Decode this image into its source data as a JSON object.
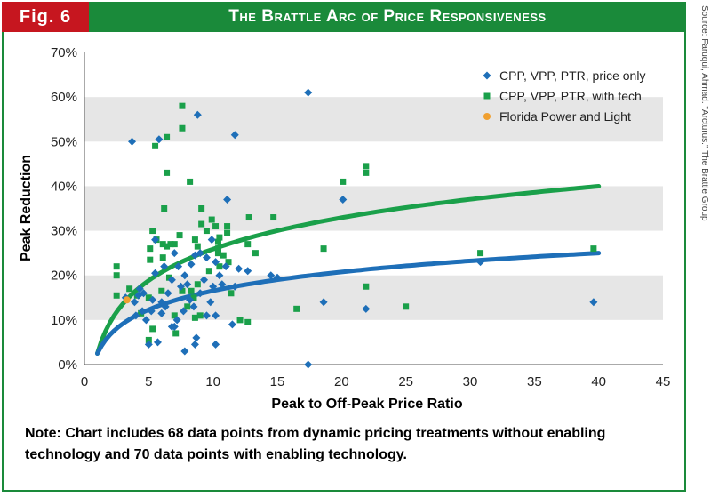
{
  "figure": {
    "label": "Fig. 6",
    "title": "The Brattle Arc of Price Responsiveness",
    "source": "Source: Faruqui, Ahmad. \"Arcturus.\" The Brattle Group",
    "note": "Note: Chart includes 68 data points from dynamic pricing treatments without enabling technology and 70 data points with enabling technology."
  },
  "colors": {
    "header_green": "#1a8a3a",
    "fig_red": "#c6161f",
    "price_only": "#1e6fb8",
    "with_tech": "#1aa04a",
    "fpl": "#f0a030",
    "band": "#e6e6e6"
  },
  "chart_data": {
    "type": "scatter",
    "xlabel": "Peak to Off-Peak Price Ratio",
    "ylabel": "Peak Reduction",
    "xlim": [
      0,
      45
    ],
    "ylim": [
      0,
      70
    ],
    "xticks": [
      "0",
      "5",
      "10",
      "15",
      "20",
      "25",
      "30",
      "35",
      "40",
      "45"
    ],
    "yticks": [
      "0%",
      "10%",
      "20%",
      "30%",
      "40%",
      "50%",
      "60%",
      "70%"
    ],
    "series": [
      {
        "name": "CPP, VPP, PTR, price only",
        "marker": "diamond",
        "points": [
          [
            3.7,
            50
          ],
          [
            5.8,
            50.5
          ],
          [
            8.8,
            56
          ],
          [
            11.7,
            51.5
          ],
          [
            17.4,
            61
          ],
          [
            11.1,
            37
          ],
          [
            20.1,
            37
          ],
          [
            5.5,
            28
          ],
          [
            6.2,
            22
          ],
          [
            7.0,
            25
          ],
          [
            7.8,
            20
          ],
          [
            8.3,
            22.5
          ],
          [
            8.6,
            24.5
          ],
          [
            9.0,
            25
          ],
          [
            9.5,
            24
          ],
          [
            10.2,
            23
          ],
          [
            11.0,
            22
          ],
          [
            9.0,
            16
          ],
          [
            8.2,
            14.5
          ],
          [
            7.7,
            12
          ],
          [
            7.2,
            10
          ],
          [
            6.8,
            8.5
          ],
          [
            6.0,
            11.5
          ],
          [
            5.2,
            12
          ],
          [
            4.5,
            12
          ],
          [
            4.0,
            11
          ],
          [
            3.9,
            14
          ],
          [
            4.2,
            15.5
          ],
          [
            4.8,
            10
          ],
          [
            5.0,
            4.5
          ],
          [
            5.7,
            5
          ],
          [
            7.0,
            8.5
          ],
          [
            7.8,
            3
          ],
          [
            8.6,
            4.5
          ],
          [
            8.7,
            6
          ],
          [
            10.2,
            4.5
          ],
          [
            10.2,
            11
          ],
          [
            10.0,
            17.5
          ],
          [
            11.7,
            17.5
          ],
          [
            12.7,
            21
          ],
          [
            14.5,
            20
          ],
          [
            15.0,
            19.5
          ],
          [
            18.6,
            14
          ],
          [
            21.9,
            12.5
          ],
          [
            30.8,
            23
          ],
          [
            39.6,
            14
          ],
          [
            17.4,
            0
          ],
          [
            9.5,
            11
          ],
          [
            11.5,
            9
          ],
          [
            6.3,
            13
          ],
          [
            6.5,
            16
          ],
          [
            7.5,
            17.5
          ],
          [
            8.0,
            18
          ],
          [
            9.3,
            19
          ],
          [
            10.5,
            20
          ],
          [
            8.5,
            13
          ],
          [
            9.8,
            14
          ],
          [
            6.0,
            14
          ],
          [
            5.3,
            14.5
          ],
          [
            4.3,
            17
          ],
          [
            3.2,
            15
          ],
          [
            5.5,
            20.5
          ],
          [
            6.8,
            19
          ],
          [
            7.3,
            22
          ],
          [
            9.9,
            28
          ],
          [
            12.0,
            21.5
          ],
          [
            10.7,
            18
          ],
          [
            4.6,
            16
          ]
        ]
      },
      {
        "name": "CPP, VPP, PTR, with tech",
        "marker": "square",
        "points": [
          [
            7.6,
            58
          ],
          [
            7.6,
            53
          ],
          [
            6.4,
            51
          ],
          [
            5.5,
            49
          ],
          [
            6.4,
            43
          ],
          [
            8.2,
            41
          ],
          [
            9.1,
            35
          ],
          [
            6.2,
            35
          ],
          [
            9.9,
            32.5
          ],
          [
            10.2,
            31
          ],
          [
            9.5,
            30
          ],
          [
            11.1,
            31
          ],
          [
            11.1,
            29.5
          ],
          [
            12.8,
            33
          ],
          [
            14.7,
            33
          ],
          [
            20.1,
            41
          ],
          [
            21.9,
            44.5
          ],
          [
            21.9,
            43
          ],
          [
            2.5,
            22
          ],
          [
            2.5,
            20
          ],
          [
            2.5,
            15.5
          ],
          [
            3.5,
            17
          ],
          [
            4.1,
            15.5
          ],
          [
            5.1,
            23.5
          ],
          [
            5.1,
            26
          ],
          [
            5.3,
            30
          ],
          [
            5.6,
            28
          ],
          [
            6.1,
            27
          ],
          [
            6.1,
            24
          ],
          [
            6.4,
            26.5
          ],
          [
            6.7,
            27
          ],
          [
            7.0,
            27
          ],
          [
            7.4,
            29
          ],
          [
            8.6,
            28
          ],
          [
            8.8,
            26.5
          ],
          [
            9.1,
            31.5
          ],
          [
            10.4,
            26
          ],
          [
            10.4,
            27.5
          ],
          [
            10.4,
            25
          ],
          [
            10.5,
            28.5
          ],
          [
            11.2,
            23
          ],
          [
            12.7,
            27
          ],
          [
            13.3,
            25
          ],
          [
            7.6,
            16.5
          ],
          [
            8.3,
            16.5
          ],
          [
            8.5,
            15
          ],
          [
            8.8,
            18
          ],
          [
            8.6,
            10.5
          ],
          [
            9.0,
            11
          ],
          [
            5.0,
            5.5
          ],
          [
            5.3,
            8
          ],
          [
            7.1,
            7
          ],
          [
            7.0,
            11
          ],
          [
            8.0,
            13
          ],
          [
            12.1,
            10
          ],
          [
            12.7,
            9.5
          ],
          [
            16.5,
            12.5
          ],
          [
            18.6,
            26
          ],
          [
            21.9,
            17.5
          ],
          [
            25.0,
            13
          ],
          [
            30.8,
            25
          ],
          [
            39.6,
            26
          ],
          [
            5.0,
            15
          ],
          [
            6.0,
            16.5
          ],
          [
            4.4,
            11.5
          ],
          [
            6.6,
            19.5
          ],
          [
            9.7,
            21
          ],
          [
            10.5,
            22
          ],
          [
            11.4,
            16
          ],
          [
            10.8,
            24.5
          ]
        ]
      },
      {
        "name": "Florida Power and Light",
        "marker": "circle",
        "points": [
          [
            3.3,
            14.5
          ]
        ]
      }
    ],
    "fits": [
      {
        "name": "with tech fit",
        "form": "log",
        "a": 2.5,
        "b": 10.16,
        "x_range": [
          1,
          40
        ]
      },
      {
        "name": "price only fit",
        "form": "log",
        "a": 2.5,
        "b": 6.1,
        "x_range": [
          1,
          40
        ]
      }
    ],
    "legend_position": "top-right"
  }
}
